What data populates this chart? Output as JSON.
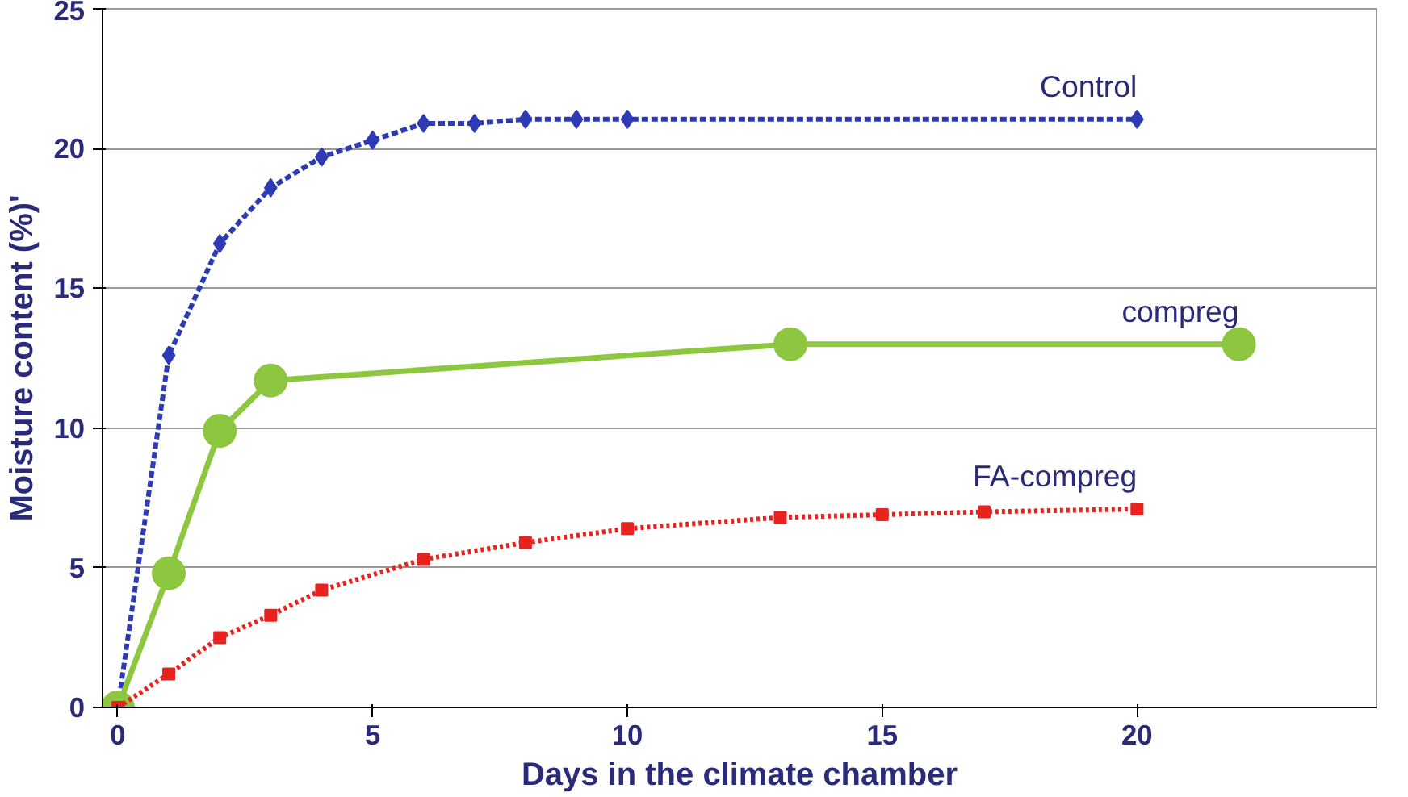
{
  "chart_data": {
    "type": "line",
    "xlabel": "Days in the climate chamber",
    "ylabel": "Moisture content (%)'",
    "xlim": [
      -0.3,
      24.7
    ],
    "ylim": [
      0,
      25
    ],
    "xticks": [
      0,
      5,
      10,
      15,
      20
    ],
    "yticks": [
      0,
      5,
      10,
      15,
      20,
      25
    ],
    "grid": "y",
    "series": [
      {
        "name": "Control",
        "color": "#2e3bb5",
        "marker": "diamond",
        "line_style": "dashed",
        "x": [
          0,
          1,
          2,
          3,
          4,
          5,
          6,
          7,
          8,
          9,
          10,
          20
        ],
        "values": [
          0,
          12.6,
          16.6,
          18.6,
          19.7,
          20.3,
          20.9,
          20.9,
          21.05,
          21.05,
          21.05,
          21.05
        ]
      },
      {
        "name": "compreg",
        "color": "#8dc63f",
        "marker": "circle",
        "line_style": "solid",
        "x": [
          0,
          1,
          2,
          3,
          13.2,
          22
        ],
        "values": [
          0,
          4.8,
          9.9,
          11.7,
          13.0,
          13.0
        ]
      },
      {
        "name": "FA-compreg",
        "color": "#e8231f",
        "marker": "square",
        "line_style": "dotted",
        "x": [
          0,
          1,
          2,
          3,
          4,
          6,
          8,
          10,
          13,
          15,
          17,
          20
        ],
        "values": [
          0,
          1.2,
          2.5,
          3.3,
          4.2,
          5.3,
          5.9,
          6.4,
          6.8,
          6.9,
          7.0,
          7.1
        ]
      }
    ]
  }
}
